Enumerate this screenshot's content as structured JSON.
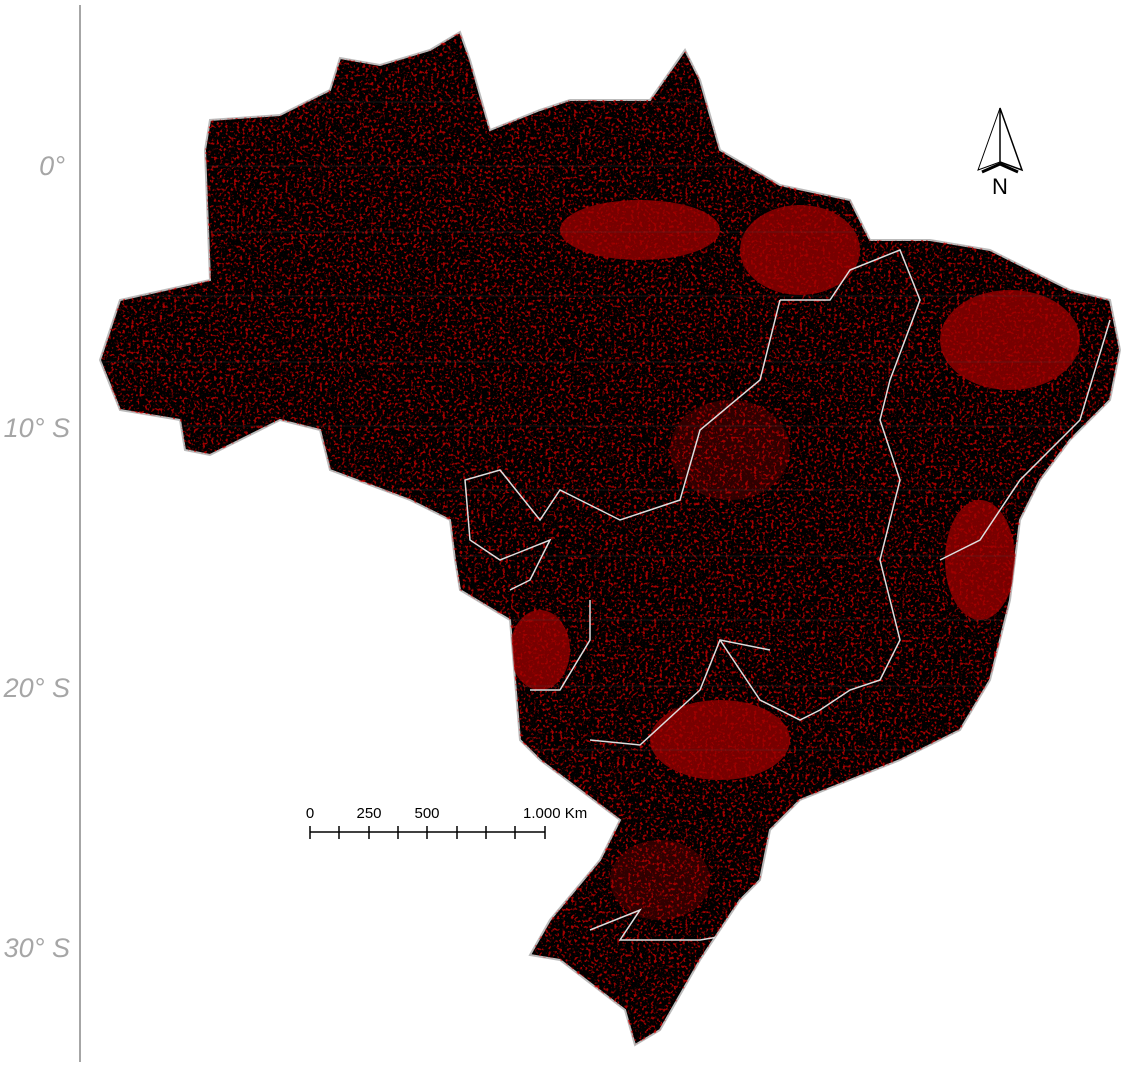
{
  "latitude_labels": [
    "0°",
    "10° S",
    "20° S",
    "30° S"
  ],
  "scale_bar": {
    "labels": [
      "0",
      "250",
      "500",
      "1.000 Km"
    ]
  },
  "north_arrow": {
    "label": "N"
  }
}
